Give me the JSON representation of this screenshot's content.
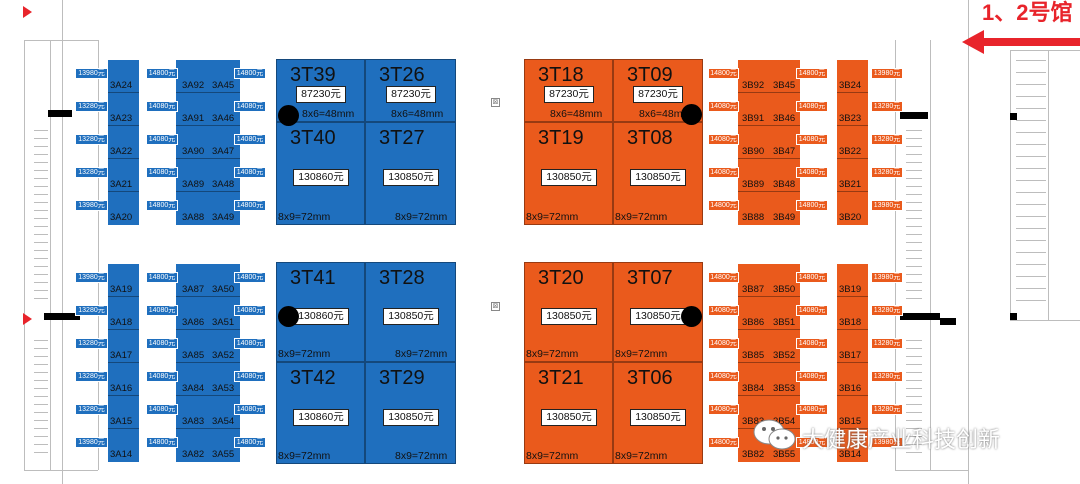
{
  "headline": "1、2号馆",
  "watermark": "大健康产业科技创新",
  "dimension_labels": {
    "d48": "8x6=48mm",
    "d72": "8x9=72mm"
  },
  "blue_left_col": [
    {
      "code": "3A24",
      "price": "13980元"
    },
    {
      "code": "3A23",
      "price": "13280元"
    },
    {
      "code": "3A22",
      "price": "13280元"
    },
    {
      "code": "3A21",
      "price": "13280元"
    },
    {
      "code": "3A20",
      "price": "13980元"
    },
    {
      "code": "3A19",
      "price": "13980元"
    },
    {
      "code": "3A18",
      "price": "13280元"
    },
    {
      "code": "3A17",
      "price": "13280元"
    },
    {
      "code": "3A16",
      "price": "13280元"
    },
    {
      "code": "3A15",
      "price": "13280元"
    },
    {
      "code": "3A14",
      "price": "13980元"
    }
  ],
  "blue_mid_left": [
    {
      "code": "3A92",
      "price": "14800元"
    },
    {
      "code": "3A91",
      "price": "14080元"
    },
    {
      "code": "3A90",
      "price": "14080元"
    },
    {
      "code": "3A89",
      "price": "14080元"
    },
    {
      "code": "3A88",
      "price": "14800元"
    },
    {
      "code": "3A87",
      "price": "14800元"
    },
    {
      "code": "3A86",
      "price": "14080元"
    },
    {
      "code": "3A85",
      "price": "14080元"
    },
    {
      "code": "3A84",
      "price": "14080元"
    },
    {
      "code": "3A83",
      "price": "14080元"
    },
    {
      "code": "3A82",
      "price": "14800元"
    }
  ],
  "blue_mid_right": [
    {
      "code": "3A45",
      "price": "14800元"
    },
    {
      "code": "3A46",
      "price": "14080元"
    },
    {
      "code": "3A47",
      "price": "14080元"
    },
    {
      "code": "3A48",
      "price": "14080元"
    },
    {
      "code": "3A49",
      "price": "14800元"
    },
    {
      "code": "3A50",
      "price": "14800元"
    },
    {
      "code": "3A51",
      "price": "14080元"
    },
    {
      "code": "3A52",
      "price": "14080元"
    },
    {
      "code": "3A53",
      "price": "14080元"
    },
    {
      "code": "3A54",
      "price": "14080元"
    },
    {
      "code": "3A55",
      "price": "14800元"
    }
  ],
  "orange_mid_left": [
    {
      "code": "3B92",
      "price": "14800元"
    },
    {
      "code": "3B91",
      "price": "14080元"
    },
    {
      "code": "3B90",
      "price": "14080元"
    },
    {
      "code": "3B89",
      "price": "14080元"
    },
    {
      "code": "3B88",
      "price": "14800元"
    },
    {
      "code": "3B87",
      "price": "14800元"
    },
    {
      "code": "3B86",
      "price": "14080元"
    },
    {
      "code": "3B85",
      "price": "14080元"
    },
    {
      "code": "3B84",
      "price": "14080元"
    },
    {
      "code": "3B83",
      "price": "14080元"
    },
    {
      "code": "3B82",
      "price": "14800元"
    }
  ],
  "orange_mid_right": [
    {
      "code": "3B45",
      "price": "14800元"
    },
    {
      "code": "3B46",
      "price": "14080元"
    },
    {
      "code": "3B47",
      "price": "14080元"
    },
    {
      "code": "3B48",
      "price": "14080元"
    },
    {
      "code": "3B49",
      "price": "14800元"
    },
    {
      "code": "3B50",
      "price": "14800元"
    },
    {
      "code": "3B51",
      "price": "14080元"
    },
    {
      "code": "3B52",
      "price": "14080元"
    },
    {
      "code": "3B53",
      "price": "14080元"
    },
    {
      "code": "3B54",
      "price": "14080元"
    },
    {
      "code": "3B55",
      "price": "14800元"
    }
  ],
  "orange_right_col": [
    {
      "code": "3B24",
      "price": "13980元"
    },
    {
      "code": "3B23",
      "price": "13280元"
    },
    {
      "code": "3B22",
      "price": "13280元"
    },
    {
      "code": "3B21",
      "price": "13280元"
    },
    {
      "code": "3B20",
      "price": "13980元"
    },
    {
      "code": "3B19",
      "price": "13980元"
    },
    {
      "code": "3B18",
      "price": "13280元"
    },
    {
      "code": "3B17",
      "price": "13280元"
    },
    {
      "code": "3B16",
      "price": "13280元"
    },
    {
      "code": "3B15",
      "price": "13280元"
    },
    {
      "code": "3B14",
      "price": "13980元"
    }
  ],
  "big_booths": [
    {
      "code": "3T39",
      "price": "87230元",
      "dim": "8x6=48mm",
      "color": "blue"
    },
    {
      "code": "3T26",
      "price": "87230元",
      "dim": "8x6=48mm",
      "color": "blue"
    },
    {
      "code": "3T40",
      "price": "130860元",
      "dim": "8x9=72mm",
      "color": "blue"
    },
    {
      "code": "3T27",
      "price": "130850元",
      "dim": "8x9=72mm",
      "color": "blue"
    },
    {
      "code": "3T41",
      "price": "130860元",
      "dim": "8x9=72mm",
      "color": "blue"
    },
    {
      "code": "3T28",
      "price": "130850元",
      "dim": "8x9=72mm",
      "color": "blue"
    },
    {
      "code": "3T42",
      "price": "130860元",
      "dim": "8x9=72mm",
      "color": "blue"
    },
    {
      "code": "3T29",
      "price": "130850元",
      "dim": "8x9=72mm",
      "color": "blue"
    },
    {
      "code": "3T18",
      "price": "87230元",
      "dim": "8x6=48mm",
      "color": "orange"
    },
    {
      "code": "3T09",
      "price": "87230元",
      "dim": "8x6=48mm",
      "color": "orange"
    },
    {
      "code": "3T19",
      "price": "130850元",
      "dim": "8x9=72mm",
      "color": "orange"
    },
    {
      "code": "3T08",
      "price": "130850元",
      "dim": "8x9=72mm",
      "color": "orange"
    },
    {
      "code": "3T20",
      "price": "130850元",
      "dim": "8x9=72mm",
      "color": "orange"
    },
    {
      "code": "3T07",
      "price": "130850元",
      "dim": "8x9=72mm",
      "color": "orange"
    },
    {
      "code": "3T21",
      "price": "130850元",
      "dim": "8x9=72mm",
      "color": "orange"
    },
    {
      "code": "3T06",
      "price": "130850元",
      "dim": "8x9=72mm",
      "color": "orange"
    }
  ],
  "colors": {
    "blue": "#1f6fbe",
    "orange": "#ea5a1c",
    "arrow": "#e8242b"
  }
}
